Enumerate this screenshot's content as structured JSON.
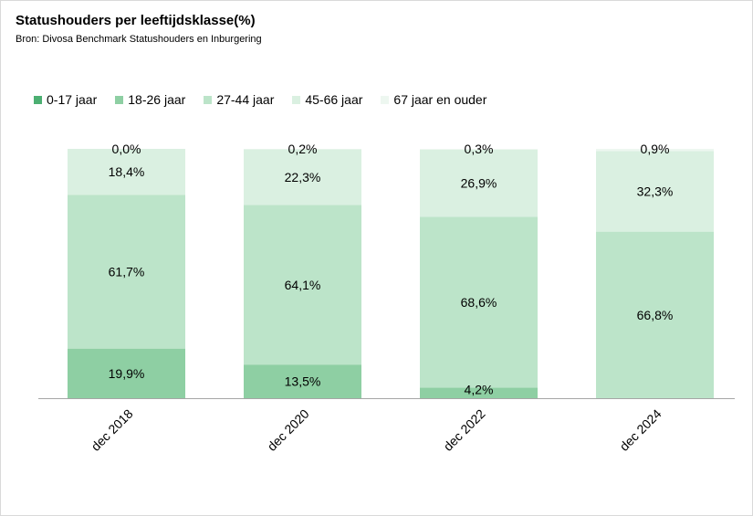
{
  "chart_data": {
    "type": "bar",
    "stacked": true,
    "title": "Statushouders per leeftijdsklasse(%)",
    "subtitle": "Bron: Divosa Benchmark Statushouders en Inburgering",
    "categories": [
      "dec 2018",
      "dec 2020",
      "dec 2022",
      "dec 2024"
    ],
    "series": [
      {
        "name": "0-17 jaar",
        "color": "#4caf72",
        "values": [
          0,
          0,
          0,
          0
        ],
        "labels": [
          "",
          "",
          "",
          ""
        ]
      },
      {
        "name": "18-26 jaar",
        "color": "#8ecfa3",
        "values": [
          19.9,
          13.5,
          4.2,
          0
        ],
        "labels": [
          "19,9%",
          "13,5%",
          "4,2%",
          ""
        ]
      },
      {
        "name": "27-44 jaar",
        "color": "#bce4c9",
        "values": [
          61.7,
          64.1,
          68.6,
          66.8
        ],
        "labels": [
          "61,7%",
          "64,1%",
          "68,6%",
          "66,8%"
        ]
      },
      {
        "name": "45-66 jaar",
        "color": "#daf0e1",
        "values": [
          18.4,
          22.3,
          26.9,
          32.3
        ],
        "labels": [
          "18,4%",
          "22,3%",
          "26,9%",
          "32,3%"
        ]
      },
      {
        "name": "67 jaar en ouder",
        "color": "#edf7f0",
        "values": [
          0.0,
          0.2,
          0.3,
          0.9
        ],
        "labels": [
          "0,0%",
          "0,2%",
          "0,3%",
          "0,9%"
        ]
      }
    ],
    "ylim": [
      0,
      100
    ],
    "grid": false,
    "legend_position": "top"
  }
}
